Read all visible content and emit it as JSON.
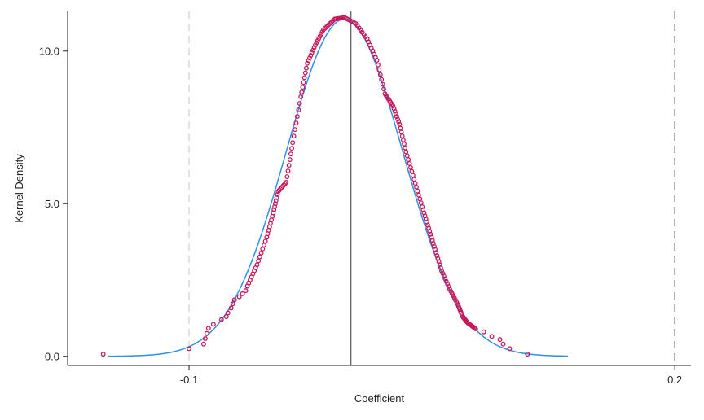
{
  "chart_data": {
    "type": "scatter",
    "title": "",
    "xlabel": "Coefficient",
    "ylabel": "Kernel Density",
    "xlim": [
      -0.175,
      0.21
    ],
    "ylim": [
      -0.3,
      11.3
    ],
    "x_ticks": [
      {
        "value": -0.1,
        "label": "-0.1"
      },
      {
        "value": 0.2,
        "label": "0.2"
      }
    ],
    "y_ticks": [
      {
        "value": 0.0,
        "label": "0.0"
      },
      {
        "value": 5.0,
        "label": "5.0"
      },
      {
        "value": 10.0,
        "label": "10.0"
      }
    ],
    "grid": false,
    "legend": "none",
    "reference_lines": [
      {
        "x": -0.1,
        "style": "dashed",
        "color": "#d6d6d6"
      },
      {
        "x": 0.0,
        "style": "solid",
        "color": "#555555"
      },
      {
        "x": 0.2,
        "style": "dashed",
        "color": "#777777"
      }
    ],
    "normal_curve": {
      "mean": -0.004,
      "sd": 0.036,
      "peak": 11.05,
      "x_range": [
        -0.15,
        0.134
      ],
      "color": "#2f8fe6"
    },
    "density_points": {
      "color": "#c8185a",
      "sparse": [
        [
          -0.153,
          0.07
        ],
        [
          -0.1,
          0.25
        ],
        [
          -0.091,
          0.4
        ],
        [
          -0.09,
          0.58
        ],
        [
          -0.089,
          0.75
        ],
        [
          -0.088,
          0.92
        ],
        [
          -0.085,
          1.05
        ],
        [
          -0.08,
          1.2
        ],
        [
          -0.077,
          1.3
        ],
        [
          -0.076,
          1.42
        ],
        [
          -0.074,
          1.58
        ],
        [
          -0.073,
          1.72
        ],
        [
          -0.072,
          1.85
        ],
        [
          -0.069,
          1.95
        ],
        [
          -0.067,
          2.05
        ],
        [
          -0.065,
          2.15
        ],
        [
          0.082,
          0.8
        ],
        [
          0.087,
          0.65
        ],
        [
          0.092,
          0.55
        ],
        [
          0.094,
          0.4
        ],
        [
          0.098,
          0.25
        ],
        [
          0.109,
          0.07
        ]
      ],
      "dense": [
        [
          -0.064,
          2.3
        ],
        [
          -0.058,
          3.0
        ],
        [
          -0.052,
          3.9
        ],
        [
          -0.048,
          4.7
        ],
        [
          -0.045,
          5.4
        ],
        [
          -0.04,
          5.7
        ],
        [
          -0.036,
          7.0
        ],
        [
          -0.031,
          8.5
        ],
        [
          -0.027,
          9.6
        ],
        [
          -0.022,
          10.2
        ],
        [
          -0.017,
          10.7
        ],
        [
          -0.01,
          11.05
        ],
        [
          -0.004,
          11.1
        ],
        [
          0.003,
          10.9
        ],
        [
          0.01,
          10.4
        ],
        [
          0.016,
          9.7
        ],
        [
          0.021,
          8.6
        ],
        [
          0.026,
          8.2
        ],
        [
          0.03,
          7.6
        ],
        [
          0.034,
          6.7
        ],
        [
          0.039,
          5.8
        ],
        [
          0.044,
          4.9
        ],
        [
          0.048,
          4.2
        ],
        [
          0.052,
          3.5
        ],
        [
          0.056,
          2.8
        ],
        [
          0.061,
          2.2
        ],
        [
          0.066,
          1.7
        ],
        [
          0.069,
          1.3
        ],
        [
          0.072,
          1.1
        ],
        [
          0.077,
          0.9
        ]
      ]
    }
  }
}
